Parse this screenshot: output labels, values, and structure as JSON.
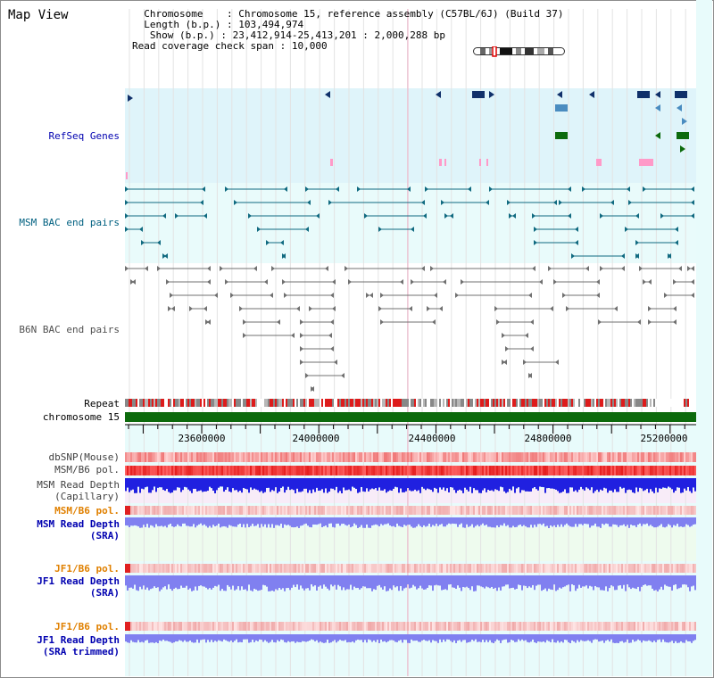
{
  "title": "Map View",
  "info": {
    "chromosome_key": "Chromosome",
    "chromosome_val": "Chromosome 15, reference assembly (C57BL/6J) (Build 37)",
    "length_key": "Length (b.p.)",
    "length_val": "103,494,974",
    "show_key": "Show (b.p.)",
    "show_val": "23,412,914-25,413,201 : 2,000,288 bp",
    "span_key": "Read coverage check span",
    "span_val": "10,000"
  },
  "tracks": {
    "refseq": "RefSeq Genes",
    "msm_bac": "MSM BAC end pairs",
    "b6n_bac": "B6N BAC end pairs",
    "repeat": "Repeat",
    "chromosome": "chromosome 15",
    "dbsnp": "dbSNP(Mouse)",
    "msm_b6_pol": "MSM/B6 pol.",
    "msm_read_depth_cap_1": "MSM Read Depth",
    "msm_read_depth_cap_2": "(Capillary)",
    "msm_b6_pol_2": "MSM/B6 pol.",
    "msm_read_depth_sra_1": "MSM Read Depth",
    "msm_read_depth_sra_2": "(SRA)",
    "jf1_b6_pol": "JF1/B6 pol.",
    "jf1_read_depth_sra_1": "JF1 Read Depth",
    "jf1_read_depth_sra_2": "(SRA)",
    "jf1_b6_pol_2": "JF1/B6 pol.",
    "jf1_read_depth_trim_1": "JF1 Read Depth",
    "jf1_read_depth_trim_2": "(SRA trimmed)"
  },
  "axis": {
    "ticks": [
      "23600000",
      "24000000",
      "24400000",
      "24800000",
      "25200000"
    ]
  },
  "colors": {
    "refseq_bg": "#dff4fa",
    "bac_bg": "#e9fbfb",
    "refseq_dark": "#10306a",
    "refseq_mid": "#4a8cc0",
    "refseq_green": "#0c6a0c",
    "refseq_pink": "#ff9ac8",
    "bac_teal": "#106a80",
    "b6n_gray": "#707070",
    "chromosome_green": "#0c6a0c",
    "depth_blue": "#2020e0",
    "depth_lavender": "#8080f0",
    "pol_red": "#e02020",
    "pol_orange": "#e08000"
  },
  "icons": [
    "chromosome-ideogram-icon",
    "forward-arrow-icon",
    "reverse-arrow-icon"
  ]
}
